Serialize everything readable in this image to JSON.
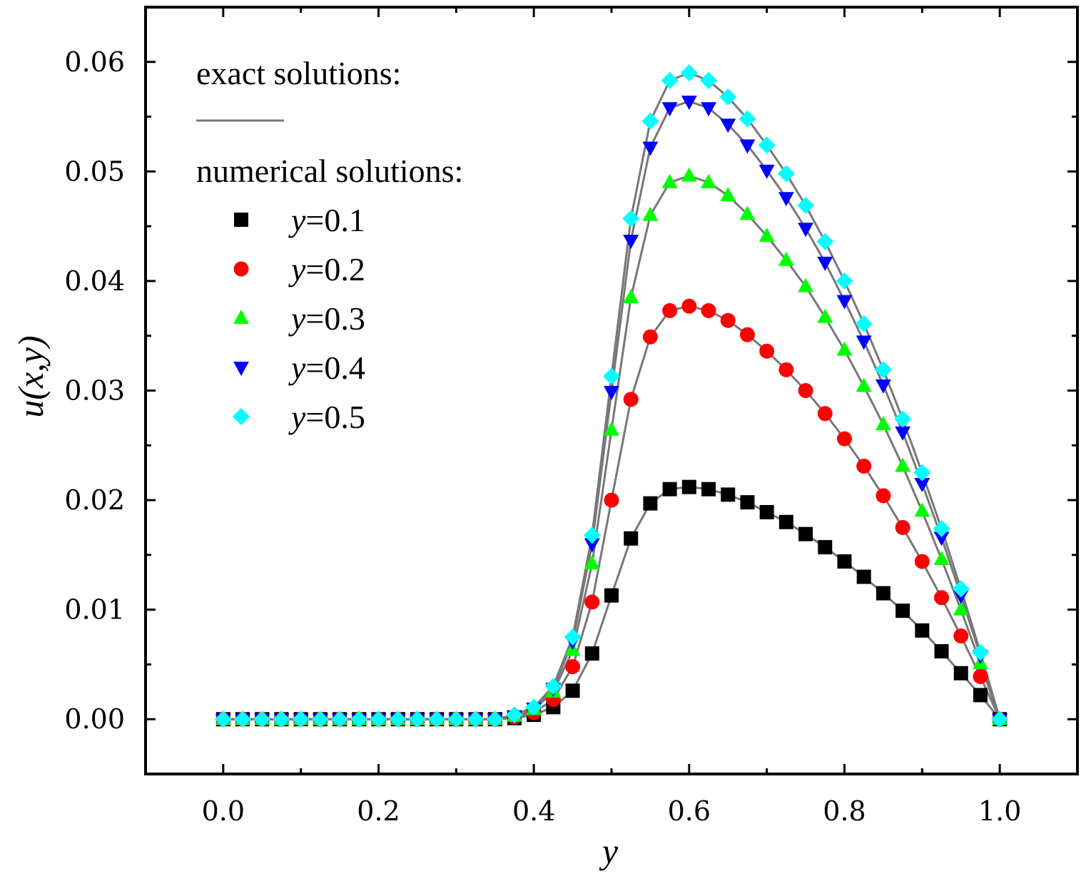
{
  "chart_data": {
    "type": "line",
    "xlabel": "y",
    "ylabel": "u(x,y)",
    "xlim": [
      -0.1,
      1.1
    ],
    "ylim": [
      -0.005,
      0.065
    ],
    "xticks": [
      "0.0",
      "0.2",
      "0.4",
      "0.6",
      "0.8",
      "1.0"
    ],
    "yticks": [
      "0.00",
      "0.01",
      "0.02",
      "0.03",
      "0.04",
      "0.05",
      "0.06"
    ],
    "legend": {
      "exact_label": "exact solutions:",
      "numerical_label": "numerical solutions:",
      "placement": "top-left"
    },
    "x": [
      0,
      0.025,
      0.05,
      0.075,
      0.1,
      0.125,
      0.15,
      0.175,
      0.2,
      0.225,
      0.25,
      0.275,
      0.3,
      0.325,
      0.35,
      0.375,
      0.4,
      0.425,
      0.45,
      0.475,
      0.5,
      0.525,
      0.55,
      0.575,
      0.6,
      0.625,
      0.65,
      0.675,
      0.7,
      0.725,
      0.75,
      0.775,
      0.8,
      0.825,
      0.85,
      0.875,
      0.9,
      0.925,
      0.95,
      0.975,
      1.0
    ],
    "series": [
      {
        "name": "y=0.1",
        "var": "y",
        "value_text": "=0.1",
        "marker": "square",
        "color": "#000000",
        "values": [
          0,
          0,
          0,
          0,
          0,
          0,
          0,
          0,
          0,
          0,
          0,
          0,
          0,
          0,
          0,
          0.0001,
          0.0004,
          0.0011,
          0.0026,
          0.006,
          0.0113,
          0.0165,
          0.0197,
          0.021,
          0.0212,
          0.021,
          0.0205,
          0.0198,
          0.0189,
          0.018,
          0.0169,
          0.0157,
          0.0144,
          0.013,
          0.0115,
          0.0099,
          0.0081,
          0.0062,
          0.0042,
          0.0022,
          0
        ]
      },
      {
        "name": "y=0.2",
        "var": "y",
        "value_text": "=0.2",
        "marker": "circle",
        "color": "#ff0000",
        "values": [
          0,
          0,
          0,
          0,
          0,
          0,
          0,
          0,
          0,
          0,
          0,
          0,
          0,
          0,
          0,
          0.0002,
          0.0006,
          0.0018,
          0.0048,
          0.0107,
          0.02,
          0.0292,
          0.0349,
          0.0373,
          0.0377,
          0.0373,
          0.0364,
          0.0351,
          0.0336,
          0.0319,
          0.03,
          0.0279,
          0.0256,
          0.0231,
          0.0204,
          0.0175,
          0.0144,
          0.0111,
          0.0076,
          0.0039,
          0
        ]
      },
      {
        "name": "y=0.3",
        "var": "y",
        "value_text": "=0.3",
        "marker": "triangle-up",
        "color": "#00ff00",
        "values": [
          0,
          0,
          0,
          0,
          0,
          0,
          0,
          0,
          0,
          0,
          0,
          0,
          0,
          0,
          0,
          0.0003,
          0.0009,
          0.0025,
          0.0063,
          0.0142,
          0.0264,
          0.0385,
          0.046,
          0.049,
          0.0496,
          0.049,
          0.0478,
          0.0461,
          0.0441,
          0.0419,
          0.0395,
          0.0367,
          0.0337,
          0.0304,
          0.0269,
          0.0231,
          0.019,
          0.0146,
          0.01,
          0.0051,
          0
        ]
      },
      {
        "name": "y=0.4",
        "var": "y",
        "value_text": "=0.4",
        "marker": "triangle-down",
        "color": "#0000ff",
        "values": [
          0,
          0,
          0,
          0,
          0,
          0,
          0,
          0,
          0,
          0,
          0,
          0,
          0,
          0,
          0,
          0.0003,
          0.001,
          0.0028,
          0.0071,
          0.016,
          0.0299,
          0.0437,
          0.0522,
          0.0558,
          0.0564,
          0.0558,
          0.0543,
          0.0524,
          0.0501,
          0.0476,
          0.0448,
          0.0417,
          0.0382,
          0.0345,
          0.0305,
          0.0262,
          0.0215,
          0.0166,
          0.0113,
          0.0058,
          0
        ]
      },
      {
        "name": "y=0.5",
        "var": "y",
        "value_text": "=0.5",
        "marker": "diamond",
        "color": "#00ffff",
        "values": [
          0,
          0,
          0,
          0,
          0,
          0,
          0,
          0,
          0,
          0,
          0,
          0,
          0,
          0,
          0,
          0.0004,
          0.0011,
          0.003,
          0.0075,
          0.0168,
          0.0313,
          0.0457,
          0.0546,
          0.0583,
          0.059,
          0.0583,
          0.0568,
          0.0548,
          0.0524,
          0.0498,
          0.0469,
          0.0436,
          0.04,
          0.0361,
          0.0319,
          0.0274,
          0.0225,
          0.0174,
          0.0119,
          0.0061,
          0
        ]
      }
    ],
    "colors": {
      "exact_line": "#777777",
      "axis": "#000000"
    }
  }
}
